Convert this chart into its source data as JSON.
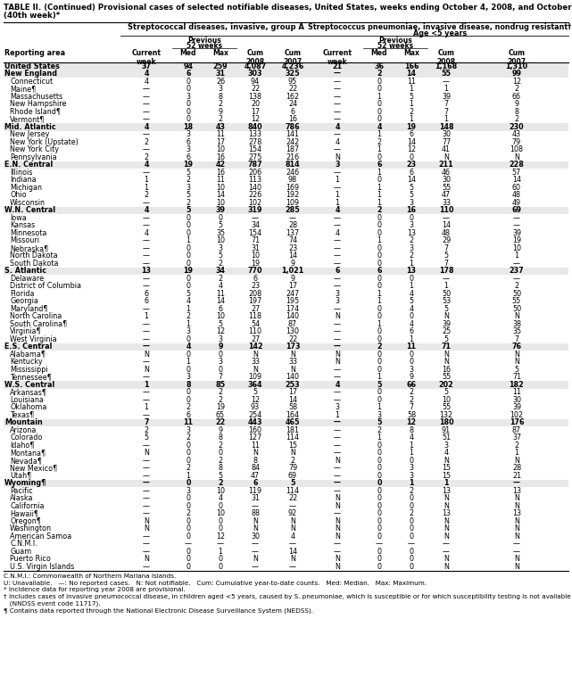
{
  "title_line1": "TABLE II. (Continued) Provisional cases of selected notifiable diseases, United States, weeks ending October 4, 2008, and October 6, 2007",
  "title_line2": "(40th week)*",
  "col_group1": "Streptococcal diseases, invasive, group A",
  "col_group2_line1": "Streptococcus pneumoniae, invasive disease, nondrug resistant†",
  "col_group2_line2": "Age <5 years",
  "rows": [
    [
      "United States",
      "37",
      "94",
      "259",
      "4,087",
      "4,236",
      "21",
      "36",
      "166",
      "1,168",
      "1,310"
    ],
    [
      "New England",
      "4",
      "6",
      "31",
      "303",
      "325",
      "—",
      "2",
      "14",
      "55",
      "99"
    ],
    [
      "Connecticut",
      "4",
      "0",
      "26",
      "94",
      "95",
      "—",
      "0",
      "11",
      "—",
      "12"
    ],
    [
      "Maine¶",
      "—",
      "0",
      "3",
      "22",
      "22",
      "—",
      "0",
      "1",
      "1",
      "2"
    ],
    [
      "Massachusetts",
      "—",
      "3",
      "8",
      "138",
      "162",
      "—",
      "1",
      "5",
      "39",
      "66"
    ],
    [
      "New Hampshire",
      "—",
      "0",
      "2",
      "20",
      "24",
      "—",
      "0",
      "1",
      "7",
      "9"
    ],
    [
      "Rhode Island¶",
      "—",
      "0",
      "9",
      "17",
      "6",
      "—",
      "0",
      "2",
      "7",
      "8"
    ],
    [
      "Vermont¶",
      "—",
      "0",
      "2",
      "12",
      "16",
      "—",
      "0",
      "1",
      "1",
      "2"
    ],
    [
      "Mid. Atlantic",
      "4",
      "18",
      "43",
      "840",
      "786",
      "4",
      "4",
      "19",
      "148",
      "230"
    ],
    [
      "New Jersey",
      "—",
      "3",
      "11",
      "133",
      "141",
      "—",
      "1",
      "6",
      "30",
      "43"
    ],
    [
      "New York (Upstate)",
      "2",
      "6",
      "17",
      "278",
      "242",
      "4",
      "2",
      "14",
      "77",
      "79"
    ],
    [
      "New York City",
      "—",
      "3",
      "10",
      "154",
      "187",
      "—",
      "1",
      "12",
      "41",
      "108"
    ],
    [
      "Pennsylvania",
      "2",
      "6",
      "16",
      "275",
      "216",
      "N",
      "0",
      "0",
      "N",
      "N"
    ],
    [
      "E.N. Central",
      "4",
      "19",
      "42",
      "787",
      "814",
      "3",
      "6",
      "23",
      "211",
      "228"
    ],
    [
      "Illinois",
      "—",
      "5",
      "16",
      "206",
      "246",
      "—",
      "1",
      "6",
      "46",
      "57"
    ],
    [
      "Indiana",
      "1",
      "2",
      "11",
      "113",
      "98",
      "1",
      "0",
      "14",
      "30",
      "14"
    ],
    [
      "Michigan",
      "1",
      "3",
      "10",
      "140",
      "169",
      "—",
      "1",
      "5",
      "55",
      "60"
    ],
    [
      "Ohio",
      "2",
      "5",
      "14",
      "226",
      "192",
      "1",
      "1",
      "5",
      "47",
      "48"
    ],
    [
      "Wisconsin",
      "—",
      "2",
      "10",
      "102",
      "109",
      "1",
      "1",
      "3",
      "33",
      "49"
    ],
    [
      "W.N. Central",
      "4",
      "5",
      "39",
      "319",
      "285",
      "4",
      "2",
      "16",
      "110",
      "69"
    ],
    [
      "Iowa",
      "—",
      "0",
      "0",
      "—",
      "—",
      "—",
      "0",
      "0",
      "—",
      "—"
    ],
    [
      "Kansas",
      "—",
      "0",
      "5",
      "34",
      "28",
      "—",
      "0",
      "3",
      "14",
      "—"
    ],
    [
      "Minnesota",
      "4",
      "0",
      "35",
      "154",
      "137",
      "4",
      "0",
      "13",
      "48",
      "39"
    ],
    [
      "Missouri",
      "—",
      "1",
      "10",
      "71",
      "74",
      "—",
      "1",
      "2",
      "29",
      "19"
    ],
    [
      "Nebraska¶",
      "—",
      "0",
      "3",
      "31",
      "23",
      "—",
      "0",
      "3",
      "7",
      "10"
    ],
    [
      "North Dakota",
      "—",
      "0",
      "5",
      "10",
      "14",
      "—",
      "0",
      "2",
      "5",
      "1"
    ],
    [
      "South Dakota",
      "—",
      "0",
      "2",
      "19",
      "9",
      "—",
      "0",
      "1",
      "7",
      "—"
    ],
    [
      "S. Atlantic",
      "13",
      "19",
      "34",
      "770",
      "1,021",
      "6",
      "6",
      "13",
      "178",
      "237"
    ],
    [
      "Delaware",
      "—",
      "0",
      "2",
      "6",
      "9",
      "—",
      "0",
      "0",
      "—",
      "—"
    ],
    [
      "District of Columbia",
      "—",
      "0",
      "4",
      "23",
      "17",
      "—",
      "0",
      "1",
      "1",
      "2"
    ],
    [
      "Florida",
      "6",
      "5",
      "11",
      "208",
      "247",
      "3",
      "1",
      "4",
      "50",
      "50"
    ],
    [
      "Georgia",
      "6",
      "4",
      "14",
      "197",
      "195",
      "3",
      "1",
      "5",
      "53",
      "55"
    ],
    [
      "Maryland¶",
      "—",
      "1",
      "6",
      "27",
      "174",
      "—",
      "0",
      "4",
      "5",
      "50"
    ],
    [
      "North Carolina",
      "1",
      "2",
      "10",
      "118",
      "140",
      "N",
      "0",
      "0",
      "N",
      "N"
    ],
    [
      "South Carolina¶",
      "—",
      "1",
      "5",
      "54",
      "87",
      "—",
      "1",
      "4",
      "39",
      "38"
    ],
    [
      "Virginia¶",
      "—",
      "3",
      "12",
      "110",
      "130",
      "—",
      "0",
      "6",
      "25",
      "35"
    ],
    [
      "West Virginia",
      "—",
      "0",
      "3",
      "27",
      "22",
      "—",
      "0",
      "1",
      "5",
      "7"
    ],
    [
      "E.S. Central",
      "—",
      "4",
      "9",
      "142",
      "173",
      "—",
      "2",
      "11",
      "71",
      "76"
    ],
    [
      "Alabama¶",
      "N",
      "0",
      "0",
      "N",
      "N",
      "N",
      "0",
      "0",
      "N",
      "N"
    ],
    [
      "Kentucky",
      "—",
      "1",
      "3",
      "33",
      "33",
      "N",
      "0",
      "0",
      "N",
      "N"
    ],
    [
      "Mississippi",
      "N",
      "0",
      "0",
      "N",
      "N",
      "—",
      "0",
      "3",
      "16",
      "5"
    ],
    [
      "Tennessee¶",
      "—",
      "3",
      "7",
      "109",
      "140",
      "—",
      "1",
      "9",
      "55",
      "71"
    ],
    [
      "W.S. Central",
      "1",
      "8",
      "85",
      "364",
      "253",
      "4",
      "5",
      "66",
      "202",
      "182"
    ],
    [
      "Arkansas¶",
      "—",
      "0",
      "2",
      "5",
      "17",
      "—",
      "0",
      "2",
      "5",
      "11"
    ],
    [
      "Louisiana",
      "—",
      "0",
      "2",
      "12",
      "14",
      "—",
      "0",
      "2",
      "10",
      "30"
    ],
    [
      "Oklahoma",
      "1",
      "2",
      "19",
      "93",
      "58",
      "3",
      "1",
      "7",
      "55",
      "39"
    ],
    [
      "Texas¶",
      "—",
      "6",
      "65",
      "254",
      "164",
      "1",
      "3",
      "58",
      "132",
      "102"
    ],
    [
      "Mountain",
      "7",
      "11",
      "22",
      "443",
      "465",
      "—",
      "5",
      "12",
      "180",
      "176"
    ],
    [
      "Arizona",
      "2",
      "3",
      "9",
      "160",
      "181",
      "—",
      "2",
      "8",
      "91",
      "87"
    ],
    [
      "Colorado",
      "5",
      "2",
      "8",
      "127",
      "114",
      "—",
      "1",
      "4",
      "51",
      "37"
    ],
    [
      "Idaho¶",
      "—",
      "0",
      "2",
      "11",
      "15",
      "—",
      "0",
      "1",
      "3",
      "2"
    ],
    [
      "Montana¶",
      "N",
      "0",
      "0",
      "N",
      "N",
      "—",
      "0",
      "1",
      "4",
      "1"
    ],
    [
      "Nevada¶",
      "—",
      "0",
      "2",
      "8",
      "2",
      "N",
      "0",
      "0",
      "N",
      "N"
    ],
    [
      "New Mexico¶",
      "—",
      "2",
      "8",
      "84",
      "79",
      "—",
      "0",
      "3",
      "15",
      "28"
    ],
    [
      "Utah¶",
      "—",
      "1",
      "5",
      "47",
      "69",
      "—",
      "0",
      "3",
      "15",
      "21"
    ],
    [
      "Wyoming¶",
      "—",
      "0",
      "2",
      "6",
      "5",
      "—",
      "0",
      "1",
      "1",
      "—"
    ],
    [
      "Pacific",
      "—",
      "3",
      "10",
      "119",
      "114",
      "—",
      "0",
      "2",
      "13",
      "13"
    ],
    [
      "Alaska",
      "—",
      "0",
      "4",
      "31",
      "22",
      "N",
      "0",
      "0",
      "N",
      "N"
    ],
    [
      "California",
      "—",
      "0",
      "0",
      "—",
      "—",
      "N",
      "0",
      "0",
      "N",
      "N"
    ],
    [
      "Hawaii¶",
      "—",
      "2",
      "10",
      "88",
      "92",
      "—",
      "0",
      "2",
      "13",
      "13"
    ],
    [
      "Oregon¶",
      "N",
      "0",
      "0",
      "N",
      "N",
      "N",
      "0",
      "0",
      "N",
      "N"
    ],
    [
      "Washington",
      "N",
      "0",
      "0",
      "N",
      "N",
      "N",
      "0",
      "0",
      "N",
      "N"
    ],
    [
      "American Samoa",
      "—",
      "0",
      "12",
      "30",
      "4",
      "N",
      "0",
      "0",
      "N",
      "N"
    ],
    [
      "C.N.M.I.",
      "—",
      "—",
      "—",
      "—",
      "—",
      "—",
      "—",
      "—",
      "—",
      "—"
    ],
    [
      "Guam",
      "—",
      "0",
      "1",
      "—",
      "14",
      "—",
      "0",
      "0",
      "—",
      "—"
    ],
    [
      "Puerto Rico",
      "N",
      "0",
      "0",
      "N",
      "N",
      "N",
      "0",
      "0",
      "N",
      "N"
    ],
    [
      "U.S. Virgin Islands",
      "—",
      "0",
      "0",
      "—",
      "—",
      "N",
      "0",
      "0",
      "N",
      "N"
    ]
  ],
  "bold_rows": [
    0,
    1,
    8,
    13,
    19,
    27,
    37,
    42,
    47,
    55
  ],
  "footer_lines": [
    "C.N.M.I.: Commonwealth of Northern Mariana Islands.",
    "U: Unavailable.   —: No reported cases.   N: Not notifiable.   Cum: Cumulative year-to-date counts.   Med: Median.   Max: Maximum.",
    "* Incidence data for reporting year 2008 are provisional.",
    "† Includes cases of invasive pneumococcal disease, in children aged <5 years, caused by S. pneumoniae, which is susceptible or for which susceptibility testing is not available",
    "   (NNDSS event code 11717).",
    "¶ Contains data reported through the National Electronic Disease Surveillance System (NEDSS)."
  ]
}
